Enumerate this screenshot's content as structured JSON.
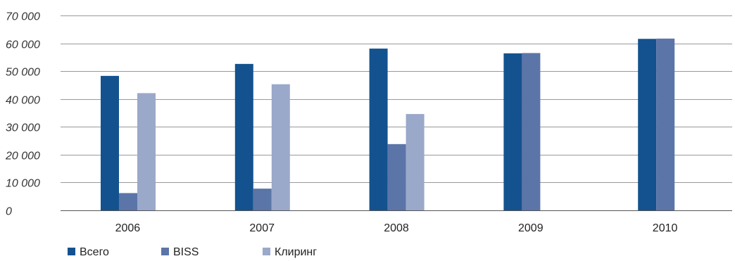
{
  "chart_data": {
    "type": "bar",
    "categories": [
      "2006",
      "2007",
      "2008",
      "2009",
      "2010"
    ],
    "series": [
      {
        "name": "Всего",
        "color": "#14528f",
        "values": [
          48300,
          52600,
          58100,
          56400,
          61600
        ]
      },
      {
        "name": "BISS",
        "color": "#5b75a8",
        "values": [
          6200,
          7800,
          23800,
          56500,
          61700
        ]
      },
      {
        "name": "Клиринг",
        "color": "#9aa8ca",
        "values": [
          42100,
          45300,
          34600,
          null,
          null
        ]
      }
    ],
    "y_tick_labels": [
      "0",
      "10 000",
      "20 000",
      "30 000",
      "40 000",
      "50 000",
      "60 000",
      "70 000"
    ],
    "y_tick_values": [
      0,
      10000,
      20000,
      30000,
      40000,
      50000,
      60000,
      70000
    ],
    "ylim": [
      0,
      70000
    ],
    "title": "",
    "xlabel": "",
    "ylabel": "",
    "grid": true,
    "legend_position": "bottom-left"
  }
}
